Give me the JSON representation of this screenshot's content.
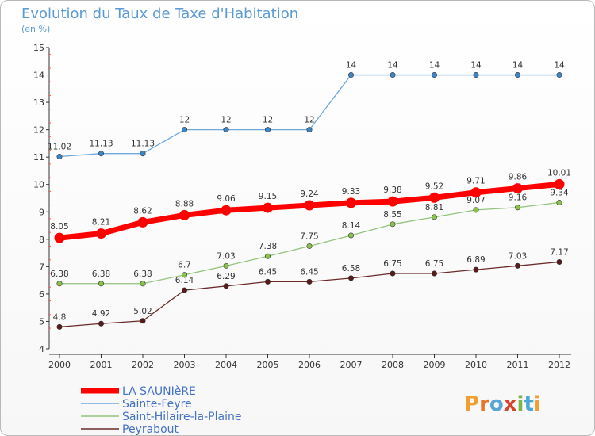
{
  "chart_data": {
    "type": "line",
    "title": "Evolution du Taux de Taxe d'Habitation",
    "subtitle": "(en %)",
    "categories": [
      "2000",
      "2001",
      "2002",
      "2003",
      "2004",
      "2005",
      "2006",
      "2007",
      "2008",
      "2009",
      "2010",
      "2011",
      "2012"
    ],
    "ylim": [
      4,
      15
    ],
    "yticks": [
      4,
      5,
      6,
      7,
      8,
      9,
      10,
      11,
      12,
      13,
      14,
      15
    ],
    "grid": false,
    "legend_position": "bottom-left",
    "series": [
      {
        "name": "LA SAUNIèRE",
        "color": "#ff0000",
        "marker": "#ff0000",
        "values": [
          8.05,
          8.21,
          8.62,
          8.88,
          9.06,
          9.15,
          9.24,
          9.33,
          9.38,
          9.52,
          9.71,
          9.86,
          10.01
        ],
        "labels": [
          "8.05",
          "8.21",
          "8.62",
          "8.88",
          "9.06",
          "9.15",
          "9.24",
          "9.33",
          "9.38",
          "9.52",
          "9.71",
          "9.86",
          "10.01"
        ]
      },
      {
        "name": "Sainte-Feyre",
        "color": "#6fa8dc",
        "marker": "#3d85c6",
        "values": [
          11.02,
          11.13,
          11.13,
          12,
          12,
          12,
          12,
          14,
          14,
          14,
          14,
          14,
          14
        ],
        "labels": [
          "11.02",
          "11.13",
          "11.13",
          "12",
          "12",
          "12",
          "12",
          "14",
          "14",
          "14",
          "14",
          "14",
          "14"
        ]
      },
      {
        "name": "Saint-Hilaire-la-Plaine",
        "color": "#93c47d",
        "marker": "#8bc34a",
        "values": [
          6.38,
          6.38,
          6.38,
          6.7,
          7.03,
          7.38,
          7.75,
          8.14,
          8.55,
          8.81,
          9.07,
          9.16,
          9.34
        ],
        "labels": [
          "6.38",
          "6.38",
          "6.38",
          "6.7",
          "7.03",
          "7.38",
          "7.75",
          "8.14",
          "8.55",
          "8.81",
          "9.07",
          "9.16",
          "9.34"
        ]
      },
      {
        "name": "Peyrabout",
        "color": "#6b2a2a",
        "marker": "#5b1a1a",
        "values": [
          4.8,
          4.92,
          5.02,
          6.14,
          6.29,
          6.45,
          6.45,
          6.58,
          6.75,
          6.75,
          6.89,
          7.03,
          7.17
        ],
        "labels": [
          "4.8",
          "4.92",
          "5.02",
          "6.14",
          "6.29",
          "6.45",
          "6.45",
          "6.58",
          "6.75",
          "6.75",
          "6.89",
          "7.03",
          "7.17"
        ]
      }
    ]
  },
  "logo": {
    "text": "Proxiti"
  }
}
